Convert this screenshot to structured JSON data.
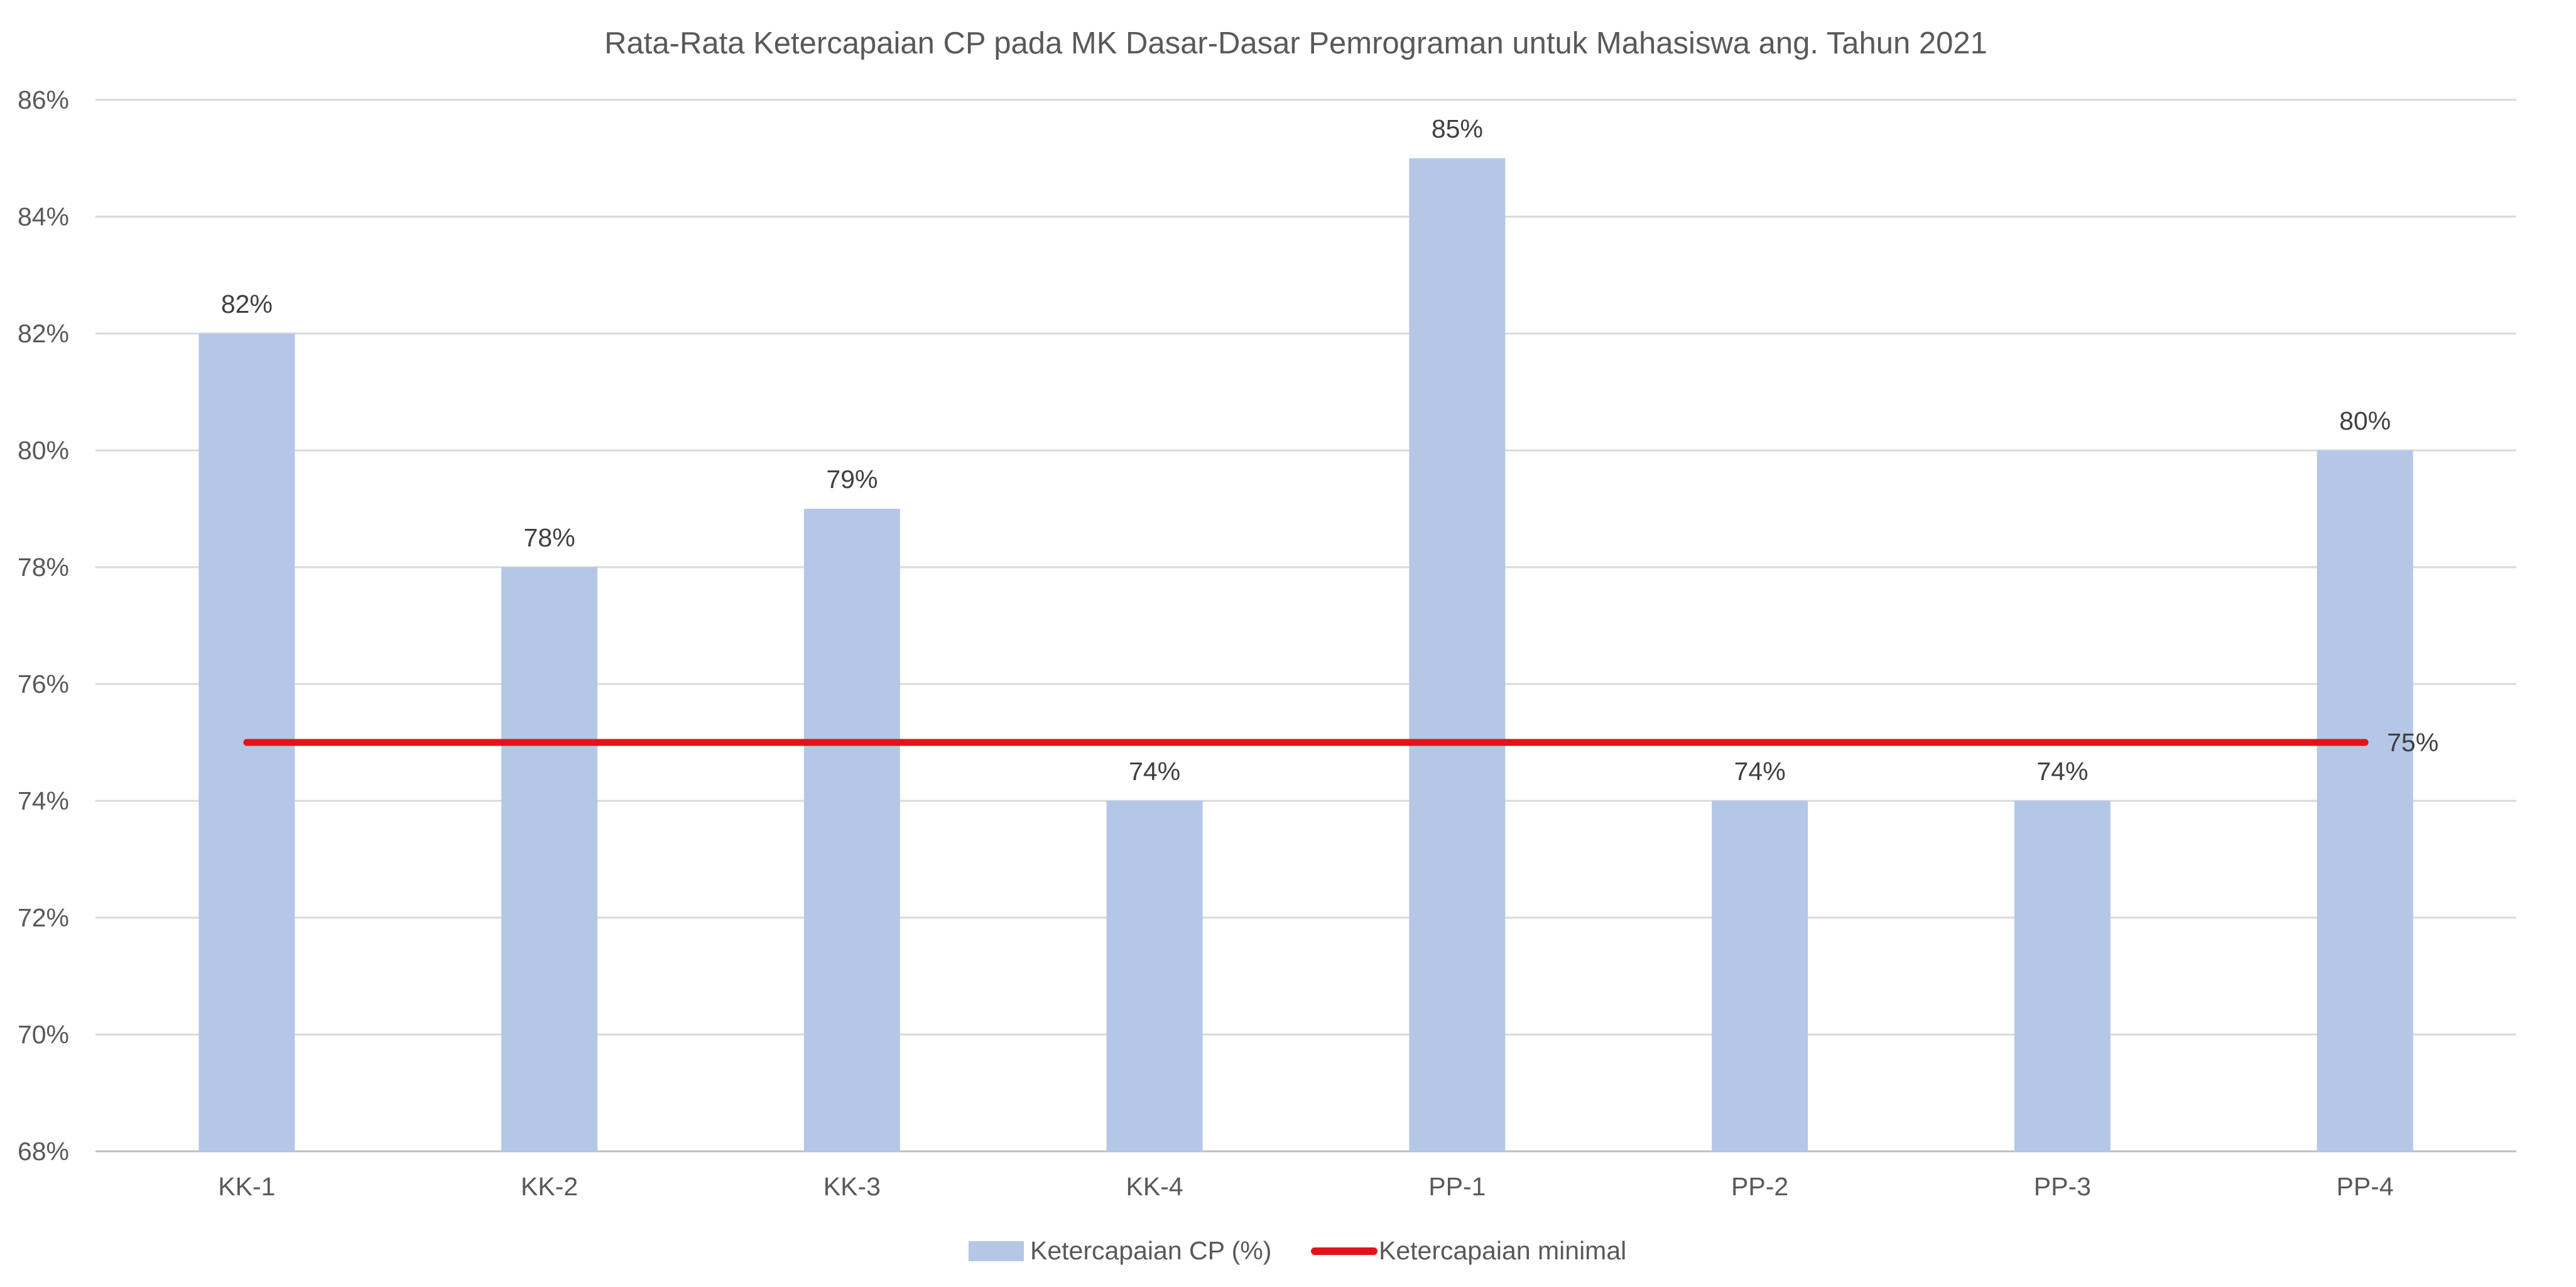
{
  "chart_data": {
    "type": "bar",
    "title": "Rata-Rata Ketercapaian CP pada MK Dasar-Dasar Pemrograman untuk Mahasiswa ang. Tahun 2021",
    "xlabel": "",
    "ylabel": "",
    "categories": [
      "KK-1",
      "KK-2",
      "KK-3",
      "KK-4",
      "PP-1",
      "PP-2",
      "PP-3",
      "PP-4"
    ],
    "series": [
      {
        "name": "Ketercapaian CP (%)",
        "type": "bar",
        "values": [
          82,
          78,
          79,
          74,
          85,
          74,
          74,
          80
        ],
        "data_labels": [
          "82%",
          "78%",
          "79%",
          "74%",
          "85%",
          "74%",
          "74%",
          "80%"
        ],
        "color": "#B4C7E7"
      },
      {
        "name": "Ketercapaian minimal",
        "type": "line",
        "values": [
          75,
          75,
          75,
          75,
          75,
          75,
          75,
          75
        ],
        "end_label": "75%",
        "color": "#E8101A"
      }
    ],
    "ylim": [
      68,
      86
    ],
    "yticks": [
      68,
      70,
      72,
      74,
      76,
      78,
      80,
      82,
      84,
      86
    ],
    "ytick_labels": [
      "68%",
      "70%",
      "72%",
      "74%",
      "76%",
      "78%",
      "80%",
      "82%",
      "84%",
      "86%"
    ],
    "grid": true,
    "legend": "bottom"
  }
}
